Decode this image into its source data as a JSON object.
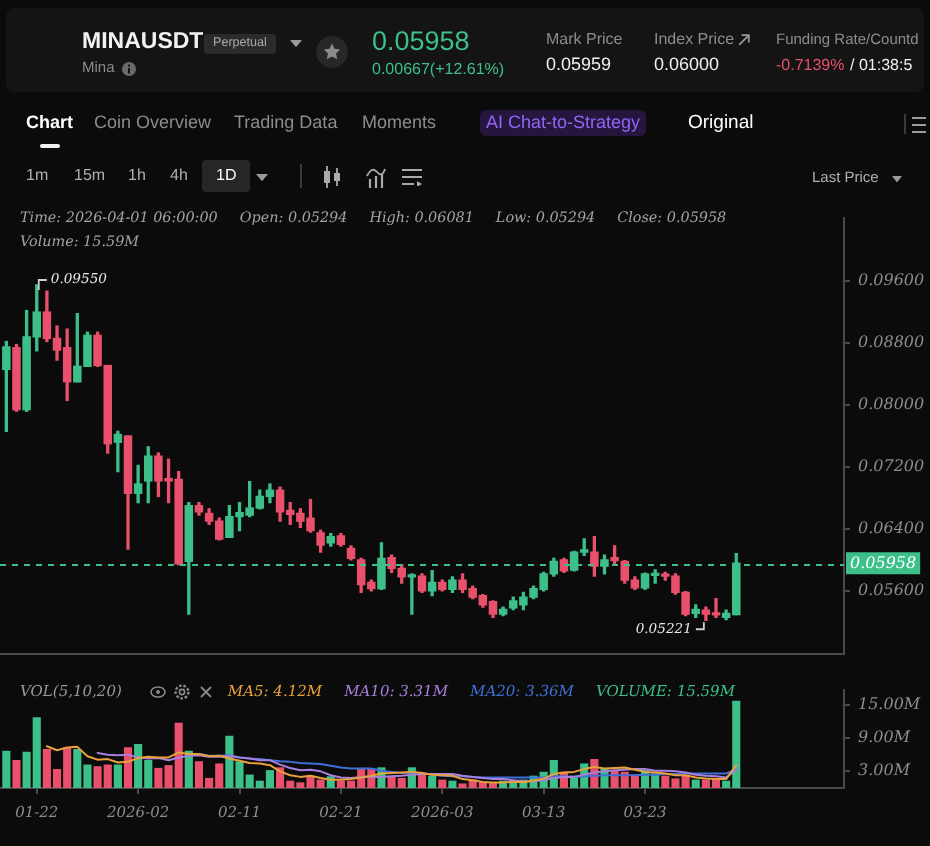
{
  "chart_data": [
    {
      "type": "other",
      "title": "MINAUSDT",
      "subtitle": "Mina",
      "annotations": [
        "Perpetual",
        "0.05958",
        "0.00667(+12.61%)",
        "Mark Price",
        "0.05959",
        "Index Price",
        "0.06000",
        "Funding Rate/Countd",
        "-0.7139%",
        "/ 01:38:5",
        "Chart",
        "Coin Overview",
        "Trading Data",
        "Moments",
        "AI Chat-to-Strategy",
        "Original",
        "1m",
        "15m",
        "1h",
        "4h",
        "1D",
        "Last Price"
      ]
    },
    {
      "type": "candlestick",
      "tick_labels": "y",
      "x": [
        "2026-01-19",
        "2026-01-20",
        "2026-01-21",
        "2026-01-22",
        "2026-01-23",
        "2026-01-24",
        "2026-01-25",
        "2026-01-26",
        "2026-01-27",
        "2026-01-28",
        "2026-01-29",
        "2026-01-30",
        "2026-01-31",
        "2026-02-01",
        "2026-02-02",
        "2026-02-03",
        "2026-02-04",
        "2026-02-05",
        "2026-02-06",
        "2026-02-07",
        "2026-02-08",
        "2026-02-09",
        "2026-02-10",
        "2026-02-11",
        "2026-02-12",
        "2026-02-13",
        "2026-02-14",
        "2026-02-15",
        "2026-02-16",
        "2026-02-17",
        "2026-02-18",
        "2026-02-19",
        "2026-02-20",
        "2026-02-21",
        "2026-02-22",
        "2026-02-23",
        "2026-02-24",
        "2026-02-25",
        "2026-02-26",
        "2026-02-27",
        "2026-02-28",
        "2026-03-01",
        "2026-03-02",
        "2026-03-03",
        "2026-03-04",
        "2026-03-05",
        "2026-03-06",
        "2026-03-07",
        "2026-03-08",
        "2026-03-09",
        "2026-03-10",
        "2026-03-11",
        "2026-03-12",
        "2026-03-13",
        "2026-03-14",
        "2026-03-15",
        "2026-03-16",
        "2026-03-17",
        "2026-03-18",
        "2026-03-19",
        "2026-03-20",
        "2026-03-21",
        "2026-03-22",
        "2026-03-23",
        "2026-03-24",
        "2026-03-25",
        "2026-03-26",
        "2026-03-27",
        "2026-03-28",
        "2026-03-29",
        "2026-03-30",
        "2026-03-31",
        "2026-04-01"
      ],
      "ohlc": [
        [
          0.0846,
          0.0882,
          0.0766,
          0.0875
        ],
        [
          0.0874,
          0.0878,
          0.0792,
          0.0794
        ],
        [
          0.0794,
          0.0922,
          0.0792,
          0.0888
        ],
        [
          0.0888,
          0.0955,
          0.087,
          0.092
        ],
        [
          0.092,
          0.0947,
          0.0882,
          0.0886
        ],
        [
          0.0886,
          0.0902,
          0.0858,
          0.0871
        ],
        [
          0.0874,
          0.0898,
          0.0806,
          0.083
        ],
        [
          0.083,
          0.0918,
          0.083,
          0.085
        ],
        [
          0.085,
          0.0894,
          0.085,
          0.089
        ],
        [
          0.089,
          0.0894,
          0.085,
          0.0851
        ],
        [
          0.0851,
          0.0851,
          0.0738,
          0.075
        ],
        [
          0.0752,
          0.0766,
          0.0714,
          0.0762
        ],
        [
          0.076,
          0.076,
          0.0614,
          0.0686
        ],
        [
          0.0686,
          0.0722,
          0.0674,
          0.0698
        ],
        [
          0.0702,
          0.0746,
          0.0674,
          0.0734
        ],
        [
          0.0734,
          0.0738,
          0.0682,
          0.0702
        ],
        [
          0.0705,
          0.073,
          0.0674,
          0.0702
        ],
        [
          0.0704,
          0.0714,
          0.0594,
          0.0595
        ],
        [
          0.0598,
          0.0674,
          0.053,
          0.067
        ],
        [
          0.067,
          0.0674,
          0.0658,
          0.0662
        ],
        [
          0.066,
          0.0666,
          0.0646,
          0.065
        ],
        [
          0.065,
          0.0654,
          0.0626,
          0.0627
        ],
        [
          0.0629,
          0.067,
          0.0629,
          0.0656
        ],
        [
          0.0656,
          0.0674,
          0.0638,
          0.0661
        ],
        [
          0.0658,
          0.0701,
          0.0656,
          0.0667
        ],
        [
          0.0667,
          0.069,
          0.0666,
          0.0682
        ],
        [
          0.0682,
          0.0698,
          0.0674,
          0.069
        ],
        [
          0.069,
          0.0694,
          0.065,
          0.0662
        ],
        [
          0.0664,
          0.0674,
          0.0646,
          0.0659
        ],
        [
          0.066,
          0.0666,
          0.0642,
          0.065
        ],
        [
          0.0654,
          0.0678,
          0.0636,
          0.0638
        ],
        [
          0.0635,
          0.0638,
          0.061,
          0.0619
        ],
        [
          0.0622,
          0.0634,
          0.0618,
          0.063
        ],
        [
          0.0631,
          0.0634,
          0.0618,
          0.062
        ],
        [
          0.0615,
          0.0618,
          0.06,
          0.0602
        ],
        [
          0.06,
          0.0602,
          0.0558,
          0.0568
        ],
        [
          0.0571,
          0.0574,
          0.056,
          0.0563
        ],
        [
          0.0563,
          0.0622,
          0.0562,
          0.0602
        ],
        [
          0.0603,
          0.0606,
          0.0584,
          0.0589
        ],
        [
          0.0589,
          0.0594,
          0.057,
          0.0578
        ],
        [
          0.0578,
          0.0582,
          0.053,
          0.0579
        ],
        [
          0.0579,
          0.0582,
          0.0558,
          0.056
        ],
        [
          0.056,
          0.0586,
          0.0554,
          0.0571
        ],
        [
          0.0571,
          0.0574,
          0.056,
          0.0562
        ],
        [
          0.0562,
          0.0578,
          0.0558,
          0.0574
        ],
        [
          0.0574,
          0.0582,
          0.0558,
          0.0562
        ],
        [
          0.0563,
          0.0566,
          0.055,
          0.0552
        ],
        [
          0.0554,
          0.0555,
          0.0539,
          0.0542
        ],
        [
          0.0546,
          0.0547,
          0.0526,
          0.053
        ],
        [
          0.053,
          0.0539,
          0.0528,
          0.0536
        ],
        [
          0.0538,
          0.0552,
          0.0536,
          0.0547
        ],
        [
          0.0542,
          0.0558,
          0.0536,
          0.0552
        ],
        [
          0.0552,
          0.0566,
          0.055,
          0.0563
        ],
        [
          0.0562,
          0.0584,
          0.056,
          0.0582
        ],
        [
          0.0582,
          0.0602,
          0.0579,
          0.0598
        ],
        [
          0.06,
          0.0602,
          0.0584,
          0.0586
        ],
        [
          0.0587,
          0.0611,
          0.0586,
          0.061
        ],
        [
          0.061,
          0.0627,
          0.0606,
          0.0613
        ],
        [
          0.061,
          0.063,
          0.0579,
          0.0592
        ],
        [
          0.0592,
          0.0606,
          0.0582,
          0.06
        ],
        [
          0.0603,
          0.0618,
          0.0594,
          0.0599
        ],
        [
          0.0598,
          0.0599,
          0.057,
          0.0574
        ],
        [
          0.0574,
          0.0578,
          0.0562,
          0.0564
        ],
        [
          0.0564,
          0.0583,
          0.0562,
          0.0582
        ],
        [
          0.058,
          0.0587,
          0.057,
          0.0582
        ],
        [
          0.0581,
          0.0584,
          0.0574,
          0.0579
        ],
        [
          0.0579,
          0.0582,
          0.0556,
          0.0558
        ],
        [
          0.0558,
          0.0559,
          0.0528,
          0.053
        ],
        [
          0.0531,
          0.0542,
          0.0526,
          0.0536
        ],
        [
          0.0535,
          0.0539,
          0.05221,
          0.053
        ],
        [
          0.053,
          0.055,
          0.0526,
          0.0529
        ],
        [
          0.0526,
          0.0535,
          0.0523,
          0.0531
        ],
        [
          0.05294,
          0.06081,
          0.05294,
          0.05958
        ]
      ],
      "colors": [
        "#3dbf8a",
        "#e8506b",
        "#3dbf8a",
        "#3dbf8a",
        "#e8506b",
        "#e8506b",
        "#e8506b",
        "#3dbf8a",
        "#3dbf8a",
        "#e8506b",
        "#e8506b",
        "#3dbf8a",
        "#e8506b",
        "#3dbf8a",
        "#3dbf8a",
        "#e8506b",
        "#e8506b",
        "#e8506b",
        "#3dbf8a",
        "#e8506b",
        "#e8506b",
        "#e8506b",
        "#3dbf8a",
        "#3dbf8a",
        "#3dbf8a",
        "#3dbf8a",
        "#3dbf8a",
        "#e8506b",
        "#e8506b",
        "#e8506b",
        "#e8506b",
        "#e8506b",
        "#3dbf8a",
        "#e8506b",
        "#e8506b",
        "#e8506b",
        "#e8506b",
        "#3dbf8a",
        "#e8506b",
        "#e8506b",
        "#3dbf8a",
        "#e8506b",
        "#3dbf8a",
        "#e8506b",
        "#3dbf8a",
        "#e8506b",
        "#e8506b",
        "#e8506b",
        "#e8506b",
        "#3dbf8a",
        "#3dbf8a",
        "#3dbf8a",
        "#3dbf8a",
        "#3dbf8a",
        "#3dbf8a",
        "#e8506b",
        "#3dbf8a",
        "#3dbf8a",
        "#e8506b",
        "#3dbf8a",
        "#e8506b",
        "#e8506b",
        "#e8506b",
        "#3dbf8a",
        "#3dbf8a",
        "#e8506b",
        "#e8506b",
        "#e8506b",
        "#3dbf8a",
        "#e8506b",
        "#e8506b",
        "#3dbf8a",
        "#3dbf8a"
      ],
      "xlim": [
        "2026-01-18T09:00",
        "2026-04-11T15:00"
      ],
      "ylim": [
        0.0478,
        0.1042
      ],
      "yticks": [
        {
          "value": 0.056,
          "label": "0.05600"
        },
        {
          "value": 0.064,
          "label": "0.06400"
        },
        {
          "value": 0.072,
          "label": "0.07200"
        },
        {
          "value": 0.08,
          "label": "0.08000"
        },
        {
          "value": 0.088,
          "label": "0.08800"
        },
        {
          "value": 0.096,
          "label": "0.09600"
        }
      ],
      "ref_lines": [
        {
          "axis": "y",
          "value": 0.05958,
          "label": "0.05958",
          "color": "#3dbf8a",
          "line_style": "dashed"
        }
      ],
      "annotations": [
        "Time: 2026-04-01 06:00:00",
        "Open: 0.05294",
        "High: 0.06081",
        "Low: 0.05294",
        "Close: 0.05958",
        "Volume: 15.59M",
        {
          "text": "0.09550",
          "x": "2026-01-22",
          "y": 0.0955
        },
        {
          "text": "0.05221",
          "x": "2026-03-29",
          "y": 0.05221
        }
      ]
    },
    {
      "type": "bar",
      "title": "VOL(5,10,20)",
      "legend": "top",
      "x": [
        "2026-01-19",
        "2026-01-20",
        "2026-01-21",
        "2026-01-22",
        "2026-01-23",
        "2026-01-24",
        "2026-01-25",
        "2026-01-26",
        "2026-01-27",
        "2026-01-28",
        "2026-01-29",
        "2026-01-30",
        "2026-01-31",
        "2026-02-01",
        "2026-02-02",
        "2026-02-03",
        "2026-02-04",
        "2026-02-05",
        "2026-02-06",
        "2026-02-07",
        "2026-02-08",
        "2026-02-09",
        "2026-02-10",
        "2026-02-11",
        "2026-02-12",
        "2026-02-13",
        "2026-02-14",
        "2026-02-15",
        "2026-02-16",
        "2026-02-17",
        "2026-02-18",
        "2026-02-19",
        "2026-02-20",
        "2026-02-21",
        "2026-02-22",
        "2026-02-23",
        "2026-02-24",
        "2026-02-25",
        "2026-02-26",
        "2026-02-27",
        "2026-02-28",
        "2026-03-01",
        "2026-03-02",
        "2026-03-03",
        "2026-03-04",
        "2026-03-05",
        "2026-03-06",
        "2026-03-07",
        "2026-03-08",
        "2026-03-09",
        "2026-03-10",
        "2026-03-11",
        "2026-03-12",
        "2026-03-13",
        "2026-03-14",
        "2026-03-15",
        "2026-03-16",
        "2026-03-17",
        "2026-03-18",
        "2026-03-19",
        "2026-03-20",
        "2026-03-21",
        "2026-03-22",
        "2026-03-23",
        "2026-03-24",
        "2026-03-25",
        "2026-03-26",
        "2026-03-27",
        "2026-03-28",
        "2026-03-29",
        "2026-03-30",
        "2026-03-31",
        "2026-04-01"
      ],
      "series": [
        {
          "name": "MA5: 4.12M",
          "type": "line",
          "color": "#e9a23b",
          "values": [
            null,
            null,
            null,
            null,
            7.5,
            6.8,
            7.3,
            7.4,
            5.7,
            5.1,
            5.2,
            4.6,
            4.7,
            5.4,
            5.6,
            5.5,
            5.5,
            6.4,
            6.1,
            6.1,
            5.7,
            5.8,
            5.3,
            4.9,
            4.5,
            4.4,
            4.1,
            3.0,
            2.3,
            2.0,
            2.2,
            1.8,
            1.5,
            1.5,
            1.6,
            1.9,
            2.2,
            2.6,
            2.7,
            2.8,
            2.9,
            2.7,
            2.4,
            2.3,
            2.2,
            1.6,
            1.4,
            1.1,
            1.0,
            1.0,
            1.1,
            1.1,
            1.3,
            1.7,
            2.5,
            2.8,
            2.9,
            3.4,
            3.8,
            3.5,
            3.6,
            3.7,
            3.3,
            2.9,
            2.8,
            2.6,
            2.3,
            2.3,
            1.9,
            1.7,
            1.6,
            1.6,
            4.12
          ]
        },
        {
          "name": "MA10: 3.31M",
          "type": "line",
          "color": "#a77fdc",
          "values": [
            null,
            null,
            null,
            null,
            null,
            null,
            null,
            null,
            null,
            6.3,
            6.0,
            5.9,
            6.0,
            5.5,
            5.3,
            5.4,
            5.0,
            5.5,
            5.8,
            5.9,
            5.6,
            5.6,
            5.8,
            5.5,
            5.3,
            5.0,
            5.0,
            4.2,
            3.6,
            3.2,
            3.3,
            3.0,
            2.3,
            1.9,
            1.8,
            2.0,
            2.0,
            2.0,
            2.1,
            2.2,
            2.4,
            2.5,
            2.5,
            2.5,
            2.5,
            2.2,
            2.0,
            1.8,
            1.6,
            1.6,
            1.4,
            1.2,
            1.2,
            1.4,
            1.8,
            2.0,
            2.0,
            2.4,
            2.8,
            3.0,
            3.2,
            3.3,
            3.4,
            3.4,
            3.1,
            3.1,
            3.0,
            2.8,
            2.4,
            2.2,
            2.1,
            1.9,
            3.31
          ]
        },
        {
          "name": "MA20: 3.36M",
          "type": "line",
          "color": "#3f6fd8",
          "values": [
            null,
            null,
            null,
            null,
            null,
            null,
            null,
            null,
            null,
            null,
            null,
            null,
            null,
            null,
            null,
            null,
            null,
            null,
            null,
            6.1,
            5.8,
            5.8,
            5.9,
            5.5,
            5.3,
            5.2,
            5.0,
            4.8,
            4.7,
            4.5,
            4.4,
            4.3,
            4.0,
            3.7,
            3.5,
            3.5,
            3.5,
            3.1,
            2.9,
            2.7,
            2.8,
            2.7,
            2.4,
            2.2,
            2.1,
            2.1,
            2.0,
            1.9,
            1.9,
            1.9,
            1.9,
            1.9,
            1.9,
            1.9,
            2.1,
            2.1,
            2.0,
            2.1,
            2.2,
            2.3,
            2.3,
            2.3,
            2.3,
            2.4,
            2.4,
            2.5,
            2.5,
            2.6,
            2.6,
            2.6,
            2.6,
            2.6,
            3.36
          ]
        },
        {
          "name": "VOLUME: 15.59M",
          "type": "bar",
          "color": "#3dbf8a",
          "colors": [
            "#3dbf8a",
            "#e8506b",
            "#3dbf8a",
            "#3dbf8a",
            "#e8506b",
            "#e8506b",
            "#e8506b",
            "#3dbf8a",
            "#3dbf8a",
            "#e8506b",
            "#e8506b",
            "#3dbf8a",
            "#e8506b",
            "#3dbf8a",
            "#3dbf8a",
            "#e8506b",
            "#e8506b",
            "#e8506b",
            "#3dbf8a",
            "#e8506b",
            "#e8506b",
            "#e8506b",
            "#3dbf8a",
            "#3dbf8a",
            "#3dbf8a",
            "#3dbf8a",
            "#3dbf8a",
            "#e8506b",
            "#e8506b",
            "#e8506b",
            "#e8506b",
            "#e8506b",
            "#3dbf8a",
            "#e8506b",
            "#e8506b",
            "#e8506b",
            "#e8506b",
            "#3dbf8a",
            "#e8506b",
            "#e8506b",
            "#3dbf8a",
            "#e8506b",
            "#3dbf8a",
            "#e8506b",
            "#3dbf8a",
            "#e8506b",
            "#e8506b",
            "#e8506b",
            "#e8506b",
            "#3dbf8a",
            "#3dbf8a",
            "#3dbf8a",
            "#3dbf8a",
            "#3dbf8a",
            "#3dbf8a",
            "#e8506b",
            "#3dbf8a",
            "#3dbf8a",
            "#e8506b",
            "#3dbf8a",
            "#e8506b",
            "#e8506b",
            "#e8506b",
            "#3dbf8a",
            "#3dbf8a",
            "#e8506b",
            "#e8506b",
            "#e8506b",
            "#3dbf8a",
            "#e8506b",
            "#e8506b",
            "#3dbf8a",
            "#3dbf8a"
          ],
          "values": [
            6.6,
            4.9,
            6.4,
            12.6,
            6.9,
            3.3,
            7.2,
            6.9,
            4.1,
            3.8,
            4.1,
            4.1,
            7.2,
            7.8,
            4.9,
            3.5,
            4.0,
            11.6,
            6.6,
            4.7,
            1.7,
            4.3,
            9.3,
            4.7,
            2.3,
            1.2,
            3.1,
            3.6,
            1.2,
            0.9,
            2.1,
            1.4,
            2.0,
            1.2,
            1.2,
            3.5,
            3.3,
            3.6,
            2.1,
            1.7,
            3.6,
            2.5,
            2.1,
            1.4,
            1.2,
            0.7,
            1.4,
            1.0,
            0.8,
            1.2,
            1.2,
            1.4,
            2.1,
            2.8,
            4.9,
            2.8,
            2.1,
            4.3,
            5.1,
            3.3,
            3.1,
            2.8,
            2.3,
            3.1,
            2.5,
            2.1,
            1.6,
            2.1,
            1.4,
            1.4,
            1.7,
            1.2,
            15.59
          ]
        }
      ],
      "xlim": [
        "2026-01-18T09:00",
        "2026-04-11T15:00"
      ],
      "xticks": [
        {
          "value": "2026-01-22",
          "label": "01-22"
        },
        {
          "value": "2026-02-01",
          "label": "2026-02"
        },
        {
          "value": "2026-02-11",
          "label": "02-11"
        },
        {
          "value": "2026-02-21",
          "label": "02-21"
        },
        {
          "value": "2026-03-03",
          "label": "2026-03"
        },
        {
          "value": "2026-03-13",
          "label": "03-13"
        },
        {
          "value": "2026-03-23",
          "label": "03-23"
        }
      ],
      "ylim": [
        0,
        17.7
      ],
      "yticks": [
        {
          "value": 3,
          "label": "3.00M"
        },
        {
          "value": 9,
          "label": "9.00M"
        },
        {
          "value": 15,
          "label": "15.00M"
        }
      ]
    }
  ]
}
